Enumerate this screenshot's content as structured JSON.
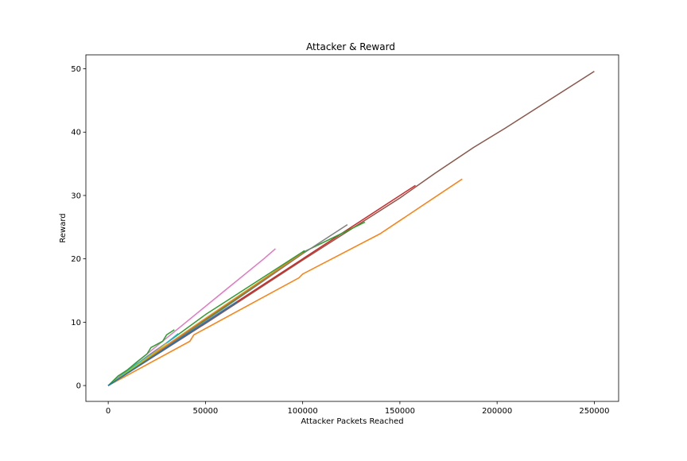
{
  "chart_data": {
    "type": "line",
    "title": "Attacker & Reward",
    "xlabel": "Attacker Packets Reached",
    "ylabel": "Reward",
    "xlim": [
      -11500,
      262500
    ],
    "ylim": [
      -2.5,
      52.2
    ],
    "xticks": [
      0,
      50000,
      100000,
      150000,
      200000,
      250000
    ],
    "xtick_labels": [
      "0",
      "50000",
      "100000",
      "150000",
      "200000",
      "250000"
    ],
    "yticks": [
      0,
      10,
      20,
      30,
      40,
      50
    ],
    "ytick_labels": [
      "0",
      "10",
      "20",
      "30",
      "40",
      "50"
    ],
    "grid": false,
    "legend": "none",
    "series": [
      {
        "color": "#8c564b",
        "points": [
          [
            0,
            0
          ],
          [
            50000,
            9.8
          ],
          [
            100000,
            19.8
          ],
          [
            150000,
            29.6
          ],
          [
            168000,
            33.5
          ],
          [
            188000,
            37.6
          ],
          [
            204000,
            40.6
          ],
          [
            250000,
            49.6
          ]
        ]
      },
      {
        "color": "#ff7f0e",
        "points": [
          [
            0,
            0
          ],
          [
            42000,
            7.0
          ],
          [
            44000,
            8.0
          ],
          [
            98000,
            17.0
          ],
          [
            100000,
            17.6
          ],
          [
            140000,
            24.0
          ],
          [
            182000,
            32.6
          ]
        ]
      },
      {
        "color": "#d62728",
        "points": [
          [
            0,
            0
          ],
          [
            50000,
            10.0
          ],
          [
            100000,
            20.0
          ],
          [
            158000,
            31.6
          ]
        ]
      },
      {
        "color": "#2ca02c",
        "points": [
          [
            0,
            0
          ],
          [
            60000,
            12.5
          ],
          [
            100000,
            21.0
          ],
          [
            132000,
            25.8
          ]
        ]
      },
      {
        "color": "#7f7f7f",
        "points": [
          [
            0,
            0
          ],
          [
            60000,
            12.3
          ],
          [
            100000,
            20.8
          ],
          [
            123000,
            25.4
          ]
        ]
      },
      {
        "color": "#ff7f0e",
        "points": [
          [
            0,
            0
          ],
          [
            50000,
            10.6
          ],
          [
            100000,
            21.0
          ]
        ]
      },
      {
        "color": "#2ca02c",
        "points": [
          [
            0,
            0
          ],
          [
            50000,
            11.2
          ],
          [
            101000,
            21.3
          ]
        ]
      },
      {
        "color": "#e377c2",
        "points": [
          [
            0,
            0
          ],
          [
            40000,
            10.0
          ],
          [
            50000,
            12.5
          ],
          [
            60000,
            15.0
          ],
          [
            70000,
            17.5
          ],
          [
            80000,
            20.0
          ],
          [
            86000,
            21.6
          ]
        ]
      },
      {
        "color": "#1f77b4",
        "points": [
          [
            0,
            0
          ],
          [
            20000,
            4.0
          ],
          [
            40000,
            8.0
          ],
          [
            44000,
            8.8
          ]
        ]
      },
      {
        "color": "#9467bd",
        "points": [
          [
            0,
            0
          ],
          [
            20000,
            4.6
          ],
          [
            34000,
            7.6
          ]
        ]
      },
      {
        "color": "#17becf",
        "points": [
          [
            0,
            0
          ],
          [
            15000,
            3.5
          ],
          [
            25000,
            5.5
          ],
          [
            36000,
            8.2
          ]
        ]
      },
      {
        "color": "#bcbd22",
        "points": [
          [
            0,
            0
          ],
          [
            10000,
            2.2
          ],
          [
            22000,
            4.8
          ],
          [
            30000,
            6.7
          ]
        ]
      },
      {
        "color": "#2ca02c",
        "points": [
          [
            0,
            0
          ],
          [
            5000,
            1.5
          ],
          [
            10000,
            2.5
          ],
          [
            15000,
            3.8
          ],
          [
            20000,
            5.0
          ],
          [
            22000,
            6.0
          ],
          [
            28000,
            7.0
          ],
          [
            30000,
            8.0
          ],
          [
            34000,
            8.8
          ]
        ]
      },
      {
        "color": "#1f77b4",
        "points": [
          [
            0,
            0
          ],
          [
            60000,
            12.0
          ],
          [
            66000,
            13.2
          ]
        ]
      }
    ]
  }
}
